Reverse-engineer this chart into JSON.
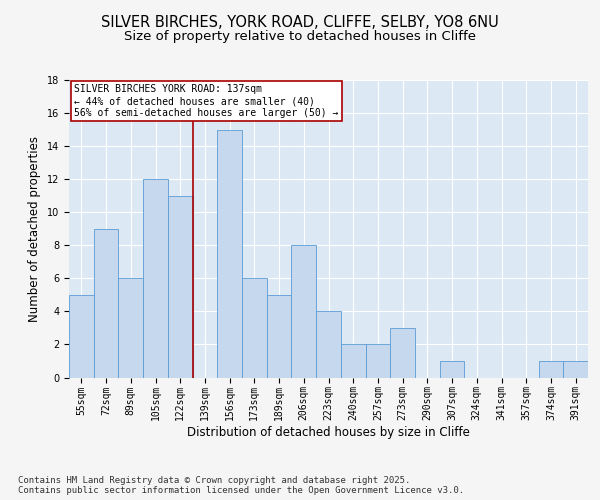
{
  "title_line1": "SILVER BIRCHES, YORK ROAD, CLIFFE, SELBY, YO8 6NU",
  "title_line2": "Size of property relative to detached houses in Cliffe",
  "xlabel": "Distribution of detached houses by size in Cliffe",
  "ylabel": "Number of detached properties",
  "categories": [
    "55sqm",
    "72sqm",
    "89sqm",
    "105sqm",
    "122sqm",
    "139sqm",
    "156sqm",
    "173sqm",
    "189sqm",
    "206sqm",
    "223sqm",
    "240sqm",
    "257sqm",
    "273sqm",
    "290sqm",
    "307sqm",
    "324sqm",
    "341sqm",
    "357sqm",
    "374sqm",
    "391sqm"
  ],
  "values": [
    5,
    9,
    6,
    12,
    11,
    0,
    15,
    6,
    5,
    8,
    4,
    2,
    2,
    3,
    0,
    1,
    0,
    0,
    0,
    1,
    1
  ],
  "bar_color": "#c5d8ee",
  "bar_edge_color": "#5b9bd5",
  "vline_x_index": 5,
  "vline_color": "#aa0000",
  "annotation_text": "SILVER BIRCHES YORK ROAD: 137sqm\n← 44% of detached houses are smaller (40)\n56% of semi-detached houses are larger (50) →",
  "annotation_box_color": "#ffffff",
  "annotation_box_edge": "#aa0000",
  "background_color": "#dce9f5",
  "plot_bg_color": "#dce9f5",
  "fig_bg_color": "#f5f5f5",
  "grid_color": "#ffffff",
  "ylim": [
    0,
    18
  ],
  "yticks": [
    0,
    2,
    4,
    6,
    8,
    10,
    12,
    14,
    16,
    18
  ],
  "footer_text": "Contains HM Land Registry data © Crown copyright and database right 2025.\nContains public sector information licensed under the Open Government Licence v3.0.",
  "title_fontsize": 10.5,
  "subtitle_fontsize": 9.5,
  "axis_label_fontsize": 8.5,
  "tick_fontsize": 7,
  "annotation_fontsize": 7,
  "footer_fontsize": 6.5
}
